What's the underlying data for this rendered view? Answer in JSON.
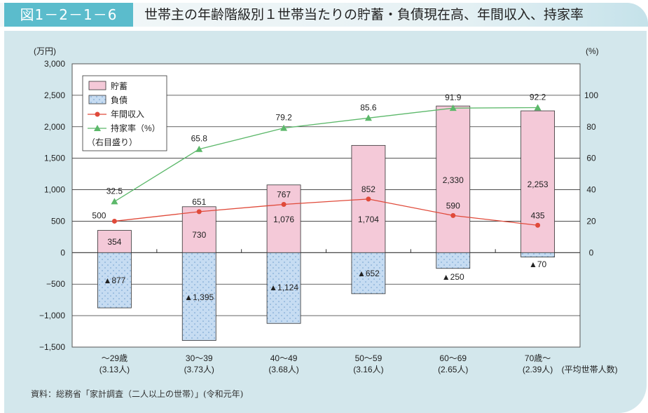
{
  "figure_number": "図1－2－1－6",
  "title": "世帯主の年齢階級別１世帯当たりの貯蓄・負債現在高、年間収入、持家率",
  "source": "資料：総務省「家計調査（二人以上の世帯）」(令和元年)",
  "chart_data": {
    "type": "bar",
    "categories": [
      [
        "～29歳",
        "(3.13人)"
      ],
      [
        "30～39",
        "(3.73人)"
      ],
      [
        "40～49",
        "(3.68人)"
      ],
      [
        "50～59",
        "(3.16人)"
      ],
      [
        "60～69",
        "(2.65人)"
      ],
      [
        "70歳～",
        "(2.39人)"
      ]
    ],
    "category_note": "(平均世帯人数)",
    "left_axis": {
      "unit": "(万円)",
      "ylim": [
        -1500,
        3000
      ],
      "ticks": [
        3000,
        2500,
        2000,
        1500,
        1000,
        500,
        0,
        -500,
        -1000,
        -1500
      ],
      "tick_labels": [
        "3,000",
        "2,500",
        "2,000",
        "1,500",
        "1,000",
        "500",
        "0",
        "−500",
        "−1,000",
        "−1,500"
      ]
    },
    "right_axis": {
      "unit": "(%)",
      "ylim": [
        -50.2,
        150.8
      ],
      "ticks": [
        0,
        20,
        40,
        60,
        80,
        100
      ],
      "tick_labels": [
        "0",
        "20",
        "40",
        "60",
        "80",
        "100"
      ]
    },
    "grid": true,
    "legend_position": "top-left",
    "series": [
      {
        "name": "貯蓄",
        "kind": "bar",
        "color": "#f4c9d8",
        "values": [
          354,
          730,
          1076,
          1704,
          2330,
          2253
        ],
        "labels": [
          "354",
          "730",
          "1,076",
          "1,704",
          "2,330",
          "2,253"
        ]
      },
      {
        "name": "負債",
        "kind": "bar",
        "color": "#c6dcf2",
        "values": [
          -877,
          -1395,
          -1124,
          -652,
          -250,
          -70
        ],
        "labels": [
          "▲877",
          "▲1,395",
          "▲1,124",
          "▲652",
          "▲250",
          "▲70"
        ]
      },
      {
        "name": "年間収入",
        "kind": "line",
        "color": "#e04a3a",
        "values": [
          500,
          651,
          767,
          852,
          590,
          435
        ],
        "labels": [
          "500",
          "651",
          "767",
          "852",
          "590",
          "435"
        ]
      },
      {
        "name": "持家率（%）",
        "name2": "（右目盛り）",
        "kind": "line",
        "axis": "right",
        "color": "#5cb86a",
        "values": [
          32.5,
          65.8,
          79.2,
          85.6,
          91.9,
          92.2
        ],
        "labels": [
          "32.5",
          "65.8",
          "79.2",
          "85.6",
          "91.9",
          "92.2"
        ]
      }
    ]
  }
}
